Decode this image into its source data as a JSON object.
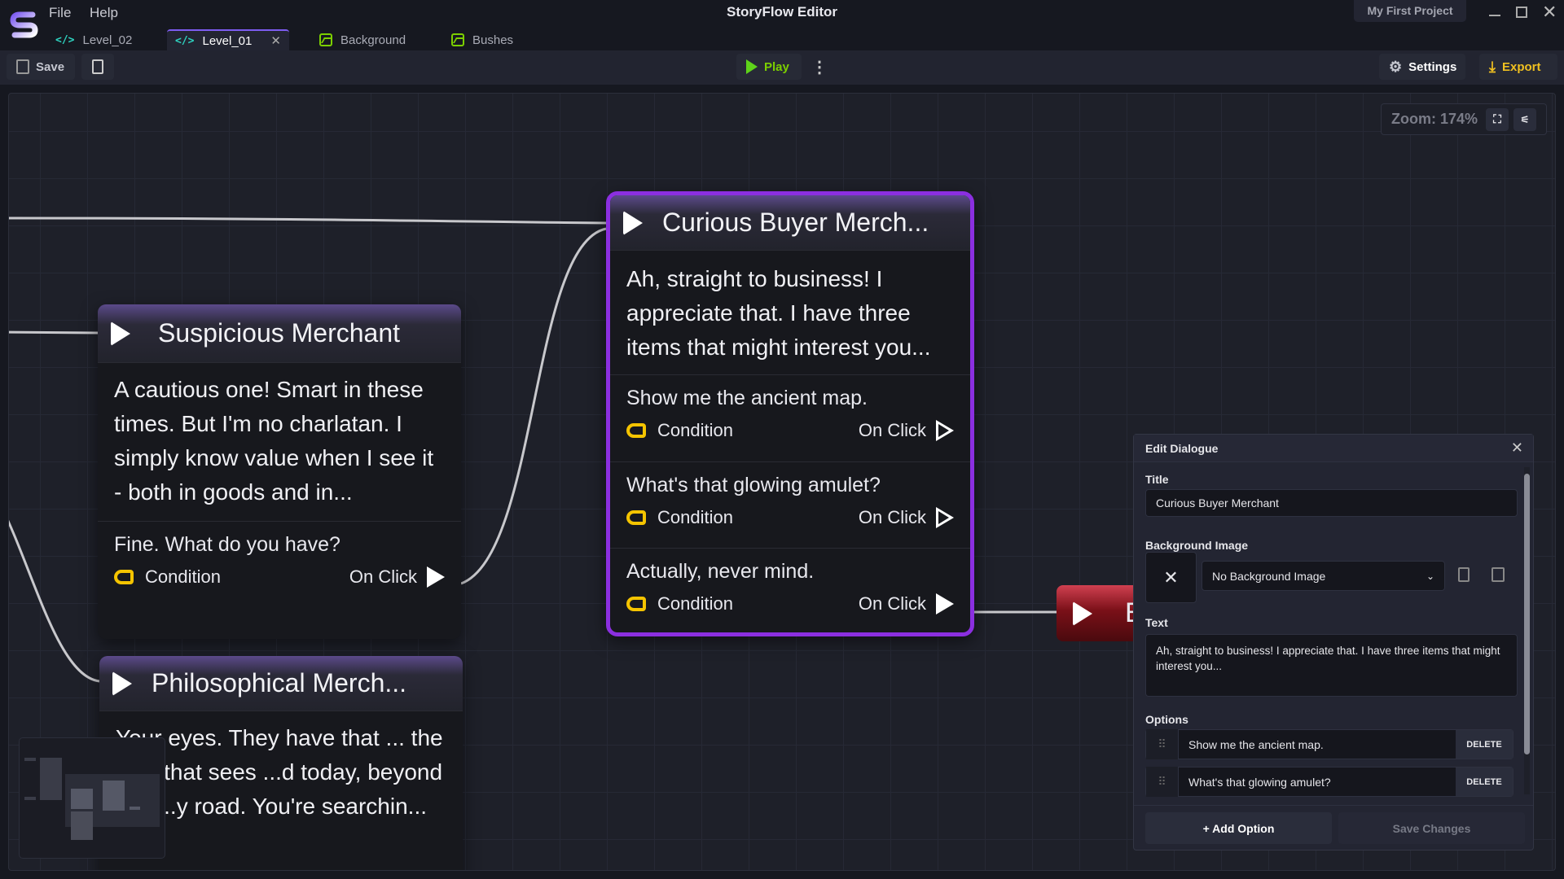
{
  "app": {
    "title": "StoryFlow Editor",
    "project": "My First Project"
  },
  "menu": [
    "File",
    "Help"
  ],
  "tabs": [
    {
      "label": "Level_02",
      "icon": "code-icon"
    },
    {
      "label": "Level_01",
      "icon": "code-icon",
      "active": true
    },
    {
      "label": "Background",
      "icon": "image-icon"
    },
    {
      "label": "Bushes",
      "icon": "image-icon"
    }
  ],
  "toolbar": {
    "save": "Save",
    "play": "Play",
    "settings": "Settings",
    "export": "Export"
  },
  "canvas": {
    "zoom": "Zoom: 174%"
  },
  "nodes": {
    "curious": {
      "title": "Curious Buyer Merch...",
      "text": "Ah, straight to business! I appreciate that. I have three items that might interest you...",
      "options": [
        {
          "text": "Show me the ancient map.",
          "condition": "Condition",
          "trigger": "On Click"
        },
        {
          "text": "What's that glowing amulet?",
          "condition": "Condition",
          "trigger": "On Click"
        },
        {
          "text": "Actually, never mind.",
          "condition": "Condition",
          "trigger": "On Click"
        }
      ]
    },
    "suspicious": {
      "title": "Suspicious Merchant",
      "text": "A cautious one! Smart in these times. But I'm no charlatan. I simply know value when I see it - both in goods and in...",
      "options": [
        {
          "text": "Fine. What do you have?",
          "condition": "Condition",
          "trigger": "On Click"
        }
      ]
    },
    "philosophical": {
      "title": "Philosophical Merch...",
      "text": "Your eyes. They have that ... the kind that sees ...d today, beyond this ...y road. You're searchin..."
    },
    "red": {
      "title": "E"
    }
  },
  "dialog": {
    "header": "Edit Dialogue",
    "title_label": "Title",
    "title_value": "Curious Buyer Merchant",
    "bg_label": "Background Image",
    "bg_value": "No Background Image",
    "text_label": "Text",
    "text_value": "Ah, straight to business! I appreciate that. I have three items that might interest you...",
    "options_label": "Options",
    "options": [
      {
        "text": "Show me the ancient map.",
        "delete": "DELETE"
      },
      {
        "text": "What's that glowing amulet?",
        "delete": "DELETE"
      }
    ],
    "add_option": "+ Add Option",
    "save_changes": "Save Changes"
  },
  "colors": {
    "accent": "#8b2fe0",
    "condition": "#f5c400",
    "export": "#f0c020",
    "code_icon": "#2ed3c0",
    "image_icon": "#7ccf00",
    "end_node": "#8a1a22"
  }
}
